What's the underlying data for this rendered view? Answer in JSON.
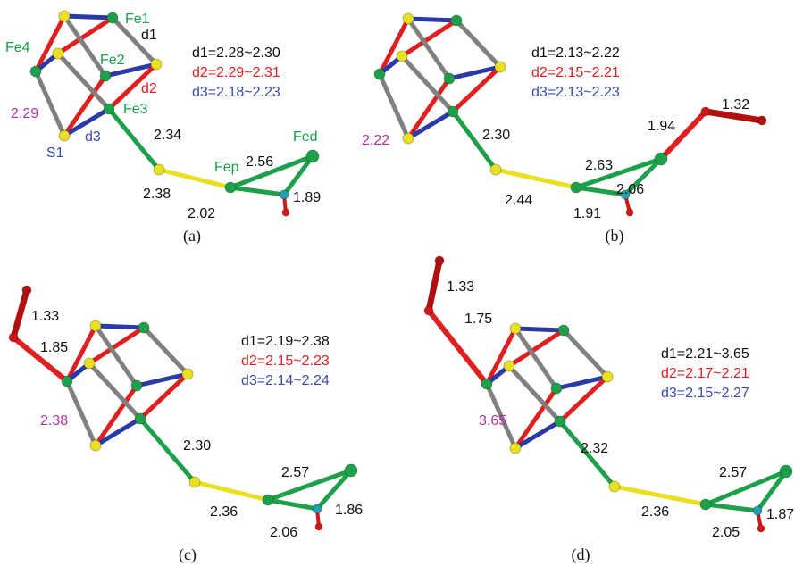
{
  "panels": [
    {
      "caption": "(a)",
      "d1": "d1=2.28~2.30",
      "d2": "d2=2.29~2.31",
      "d3": "d3=2.18~2.23",
      "labels": [
        "Fe1",
        "d1",
        "Fe4",
        "Fe2",
        "d2",
        "2.29",
        "Fe3",
        "S1",
        "d3",
        "2.34",
        "Fed",
        "Fep",
        "2.56",
        "2.38",
        "1.89",
        "2.02"
      ]
    },
    {
      "caption": "(b)",
      "d1": "d1=2.13~2.22",
      "d2": "d2=2.15~2.21",
      "d3": "d3=2.13~2.23",
      "labels": [
        "2.22",
        "2.30",
        "1.32",
        "1.94",
        "2.63",
        "2.44",
        "2.06",
        "1.91"
      ]
    },
    {
      "caption": "(c)",
      "d1": "d1=2.19~2.38",
      "d2": "d2=2.15~2.23",
      "d3": "d3=2.14~2.24",
      "labels": [
        "1.33",
        "1.85",
        "2.38",
        "2.30",
        "2.57",
        "2.36",
        "2.06",
        "1.86"
      ]
    },
    {
      "caption": "(d)",
      "d1": "d1=2.21~3.65",
      "d2": "d2=2.17~2.21",
      "d3": "d3=2.15~2.27",
      "labels": [
        "1.33",
        "1.75",
        "3.65",
        "2.32",
        "2.57",
        "2.36",
        "2.05",
        "1.87"
      ]
    }
  ]
}
